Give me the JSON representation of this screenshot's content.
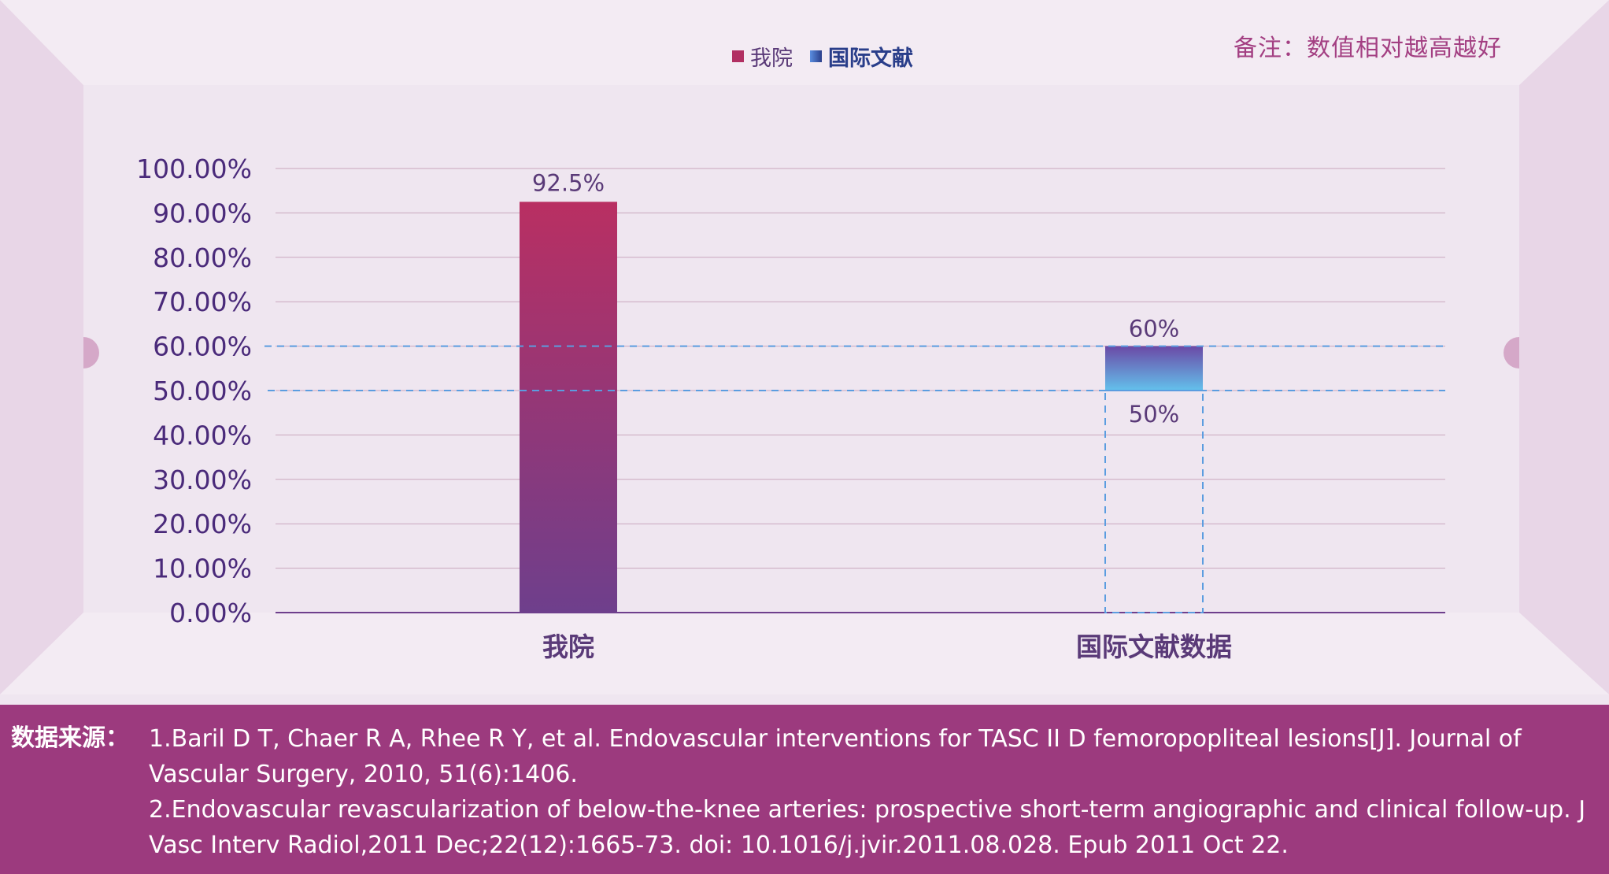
{
  "legend": {
    "items": [
      {
        "label": "我院",
        "color": "#b12f62"
      },
      {
        "label": "国际文献",
        "color": "#5a8ee0"
      }
    ]
  },
  "note": "备注：数值相对越高越好",
  "chart_data": {
    "type": "bar",
    "categories": [
      "我院",
      "国际文献数据"
    ],
    "series": [
      {
        "name": "我院",
        "values": [
          92.5,
          null
        ],
        "data_labels": [
          "92.5%",
          null
        ]
      },
      {
        "name": "国际文献",
        "range": [
          50,
          60
        ],
        "data_labels": [
          "60%",
          "50%"
        ]
      }
    ],
    "ylim": [
      0,
      100
    ],
    "yticks": [
      "0.00%",
      "10.00%",
      "20.00%",
      "30.00%",
      "40.00%",
      "50.00%",
      "60.00%",
      "70.00%",
      "80.00%",
      "90.00%",
      "100.00%"
    ],
    "reference_lines": [
      50,
      60
    ],
    "colors": {
      "bar_top": "#b92f62",
      "bar_bottom": "#6e3f8c",
      "range_top": "#6b49a6",
      "range_bottom": "#63c1ec",
      "ref_line": "#5b9de0",
      "grid": "#c9a7bd",
      "tick_text": "#4a2a7a"
    }
  },
  "footer": {
    "label": "数据来源：",
    "refs": [
      "1.Baril D T, Chaer R A, Rhee R Y, et al. Endovascular interventions for TASC II D femoropopliteal lesions[J]. Journal of Vascular Surgery, 2010, 51(6):1406.",
      "2.Endovascular revascularization of below-the-knee arteries: prospective short-term angiographic and clinical follow-up. J Vasc Interv Radiol,2011 Dec;22(12):1665-73. doi: 10.1016/j.jvir.2011.08.028. Epub 2011 Oct 22."
    ]
  }
}
